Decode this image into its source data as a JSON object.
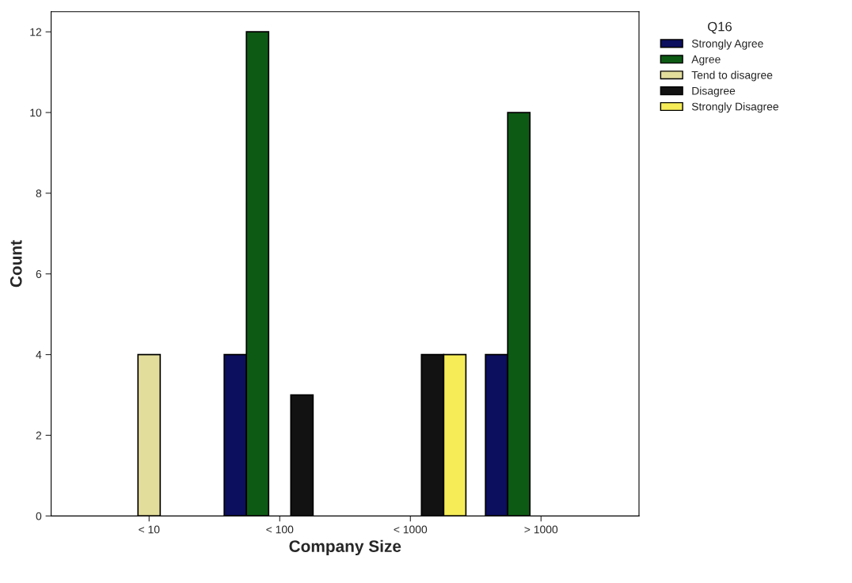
{
  "chart_data": {
    "type": "bar",
    "xlabel": "Company Size",
    "ylabel": "Count",
    "legend_title": "Q16",
    "categories": [
      "< 10",
      "< 100",
      "< 1000",
      "> 1000"
    ],
    "series": [
      {
        "name": "Strongly Agree",
        "color": "#0c0e5e",
        "values": [
          null,
          4,
          null,
          4
        ]
      },
      {
        "name": "Agree",
        "color": "#0d5a14",
        "values": [
          null,
          12,
          null,
          10
        ]
      },
      {
        "name": "Tend to disagree",
        "color": "#e3dd9c",
        "values": [
          4,
          null,
          null,
          null
        ]
      },
      {
        "name": "Disagree",
        "color": "#121212",
        "values": [
          null,
          3,
          4,
          null
        ]
      },
      {
        "name": "Strongly Disagree",
        "color": "#f5ec58",
        "values": [
          null,
          null,
          4,
          null
        ]
      }
    ],
    "ylim": [
      0,
      12.5
    ],
    "yticks": [
      0,
      2,
      4,
      6,
      8,
      10,
      12
    ],
    "grid": false,
    "legend": "right"
  }
}
